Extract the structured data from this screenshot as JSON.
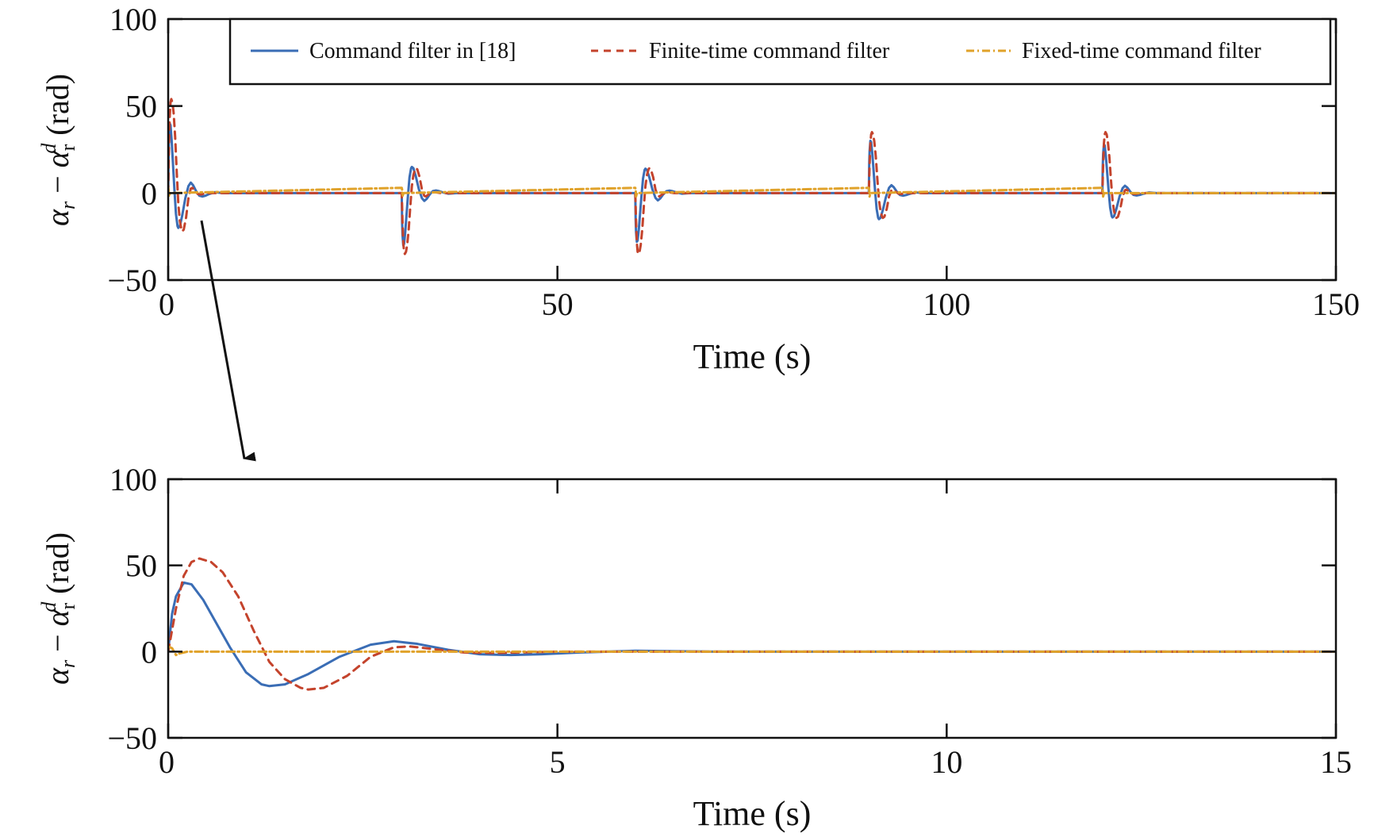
{
  "colors": {
    "command_filter": "#3a6db5",
    "finite_time": "#c4432c",
    "fixed_time": "#e0a22a",
    "axis": "#111111"
  },
  "legend": {
    "placement": "top-right (inside upper panel)",
    "entries": [
      "Command filter in [18]",
      "Finite-time command filter",
      "Fixed-time command filter"
    ]
  },
  "annotation": "arrow from the initial transient of the upper panel down to the lower (zoomed) panel",
  "chart_data": [
    {
      "type": "line",
      "xlabel": "Time (s)",
      "ylabel": {
        "alpha1": "α",
        "sub1": "r",
        "minus": " − ",
        "alpha2": "α",
        "sub2": "r",
        "sup2": "d",
        "unit": " (rad)"
      },
      "xlim": [
        0,
        150
      ],
      "ylim": [
        -50,
        100
      ],
      "xticks": [
        "0",
        "50",
        "100",
        "150"
      ],
      "yticks": [
        "100",
        "50",
        "0",
        "−50"
      ],
      "grid": false,
      "event_times": [
        0,
        30,
        60,
        90,
        120
      ],
      "series": [
        {
          "name": "Command filter in [18]",
          "style": "solid",
          "peaks": [
            [
              0.2,
              40
            ],
            [
              30.3,
              -30
            ],
            [
              60.3,
              -28
            ],
            [
              90.2,
              30
            ],
            [
              120.2,
              28
            ]
          ],
          "envelope": [
            [
              0,
              0
            ],
            [
              0.2,
              40
            ],
            [
              1.2,
              -20
            ],
            [
              2.9,
              6
            ],
            [
              4.4,
              -2
            ],
            [
              6,
              0.5
            ],
            [
              150,
              0
            ]
          ]
        },
        {
          "name": "Finite-time command filter",
          "style": "dashed",
          "peaks": [
            [
              0.4,
              54
            ],
            [
              30.4,
              -35
            ],
            [
              60.4,
              -35
            ],
            [
              90.4,
              35
            ],
            [
              120.4,
              35
            ]
          ],
          "envelope": [
            [
              0,
              0
            ],
            [
              0.4,
              54
            ],
            [
              1.8,
              -22
            ],
            [
              3.1,
              3
            ],
            [
              4.2,
              -0.8
            ],
            [
              150,
              0
            ]
          ]
        },
        {
          "name": "Fixed-time command filter",
          "style": "dashdot",
          "peaks": [
            [
              0.05,
              3
            ],
            [
              30.05,
              3
            ],
            [
              60.05,
              3
            ],
            [
              90.05,
              3
            ],
            [
              120.05,
              3
            ]
          ],
          "envelope": [
            [
              0,
              3
            ],
            [
              0.1,
              -2
            ],
            [
              0.25,
              0
            ],
            [
              150,
              0
            ]
          ]
        }
      ]
    },
    {
      "type": "line",
      "xlabel": "Time (s)",
      "ylabel": {
        "alpha1": "α",
        "sub1": "r",
        "minus": " − ",
        "alpha2": "α",
        "sub2": "r",
        "sup2": "d",
        "unit": " (rad)"
      },
      "xlim": [
        0,
        15
      ],
      "ylim": [
        -50,
        100
      ],
      "xticks": [
        "0",
        "5",
        "10",
        "15"
      ],
      "yticks": [
        "100",
        "50",
        "0",
        "−50"
      ],
      "grid": false,
      "series": [
        {
          "name": "Command filter in [18]",
          "style": "solid",
          "points": [
            [
              0,
              0
            ],
            [
              0.05,
              22
            ],
            [
              0.1,
              32
            ],
            [
              0.2,
              40
            ],
            [
              0.3,
              39
            ],
            [
              0.45,
              30
            ],
            [
              0.6,
              18
            ],
            [
              0.8,
              2
            ],
            [
              1.0,
              -12
            ],
            [
              1.2,
              -19
            ],
            [
              1.3,
              -20
            ],
            [
              1.5,
              -19
            ],
            [
              1.8,
              -13
            ],
            [
              2.2,
              -3
            ],
            [
              2.6,
              4
            ],
            [
              2.9,
              6
            ],
            [
              3.2,
              4.5
            ],
            [
              3.6,
              1
            ],
            [
              4.0,
              -1.5
            ],
            [
              4.4,
              -2
            ],
            [
              4.8,
              -1.5
            ],
            [
              5.3,
              -0.5
            ],
            [
              6.0,
              0.5
            ],
            [
              7,
              0
            ],
            [
              15,
              0
            ]
          ]
        },
        {
          "name": "Finite-time command filter",
          "style": "dashed",
          "points": [
            [
              0,
              0
            ],
            [
              0.1,
              25
            ],
            [
              0.2,
              44
            ],
            [
              0.3,
              52
            ],
            [
              0.4,
              54
            ],
            [
              0.55,
              52
            ],
            [
              0.7,
              46
            ],
            [
              0.9,
              32
            ],
            [
              1.1,
              12
            ],
            [
              1.3,
              -6
            ],
            [
              1.5,
              -16
            ],
            [
              1.7,
              -21
            ],
            [
              1.8,
              -22
            ],
            [
              2.0,
              -21
            ],
            [
              2.3,
              -14
            ],
            [
              2.6,
              -3
            ],
            [
              2.9,
              2.5
            ],
            [
              3.1,
              3
            ],
            [
              3.4,
              1.5
            ],
            [
              3.8,
              -0.5
            ],
            [
              4.2,
              -0.8
            ],
            [
              5,
              0
            ],
            [
              15,
              0
            ]
          ]
        },
        {
          "name": "Fixed-time command filter",
          "style": "dashdot",
          "points": [
            [
              0,
              3
            ],
            [
              0.05,
              2
            ],
            [
              0.1,
              -2
            ],
            [
              0.15,
              -1
            ],
            [
              0.25,
              0
            ],
            [
              15,
              0
            ]
          ]
        }
      ]
    }
  ]
}
